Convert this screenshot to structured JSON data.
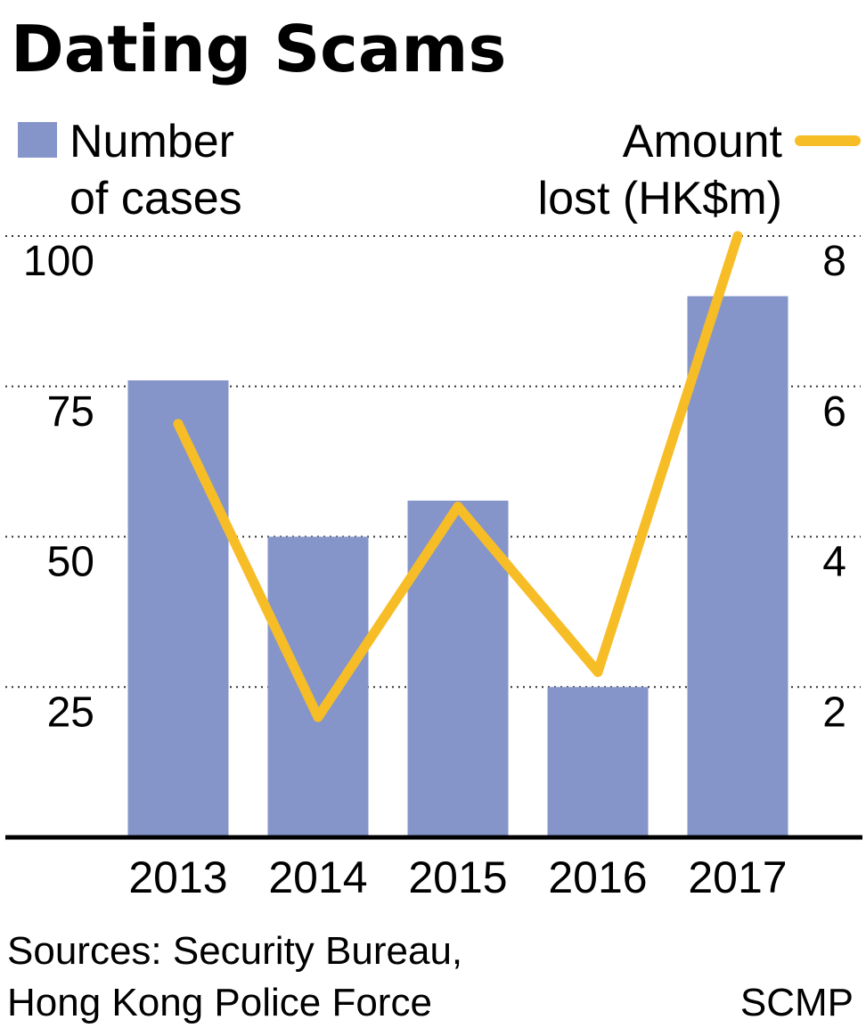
{
  "chart_data": {
    "type": "bar",
    "title": "Dating Scams",
    "categories": [
      "2013",
      "2014",
      "2015",
      "2016",
      "2017"
    ],
    "series": [
      {
        "name": "Number of cases",
        "kind": "bar",
        "axis": "left",
        "color": "#8595ca",
        "values": [
          76,
          50,
          56,
          25,
          90
        ]
      },
      {
        "name": "Amount lost (HK$m)",
        "kind": "line",
        "axis": "right",
        "color": "#f7bd27",
        "values": [
          5.5,
          1.6,
          4.4,
          2.2,
          8.0
        ]
      }
    ],
    "y_left": {
      "range": [
        0,
        100
      ],
      "ticks": [
        "100",
        "75",
        "50",
        "25"
      ],
      "tick_values": [
        100,
        75,
        50,
        25
      ]
    },
    "y_right": {
      "range": [
        0,
        8
      ],
      "ticks": [
        "8",
        "6",
        "4",
        "2"
      ],
      "tick_values": [
        8,
        6,
        4,
        2
      ]
    },
    "grid": "dotted",
    "legend": {
      "left_lines": [
        "Number",
        "of cases"
      ],
      "right_lines": [
        "Amount",
        "lost (HK$m)"
      ]
    }
  },
  "footer": {
    "source_lines": [
      "Sources: Security Bureau,",
      "Hong Kong Police Force"
    ],
    "credit": "SCMP"
  }
}
